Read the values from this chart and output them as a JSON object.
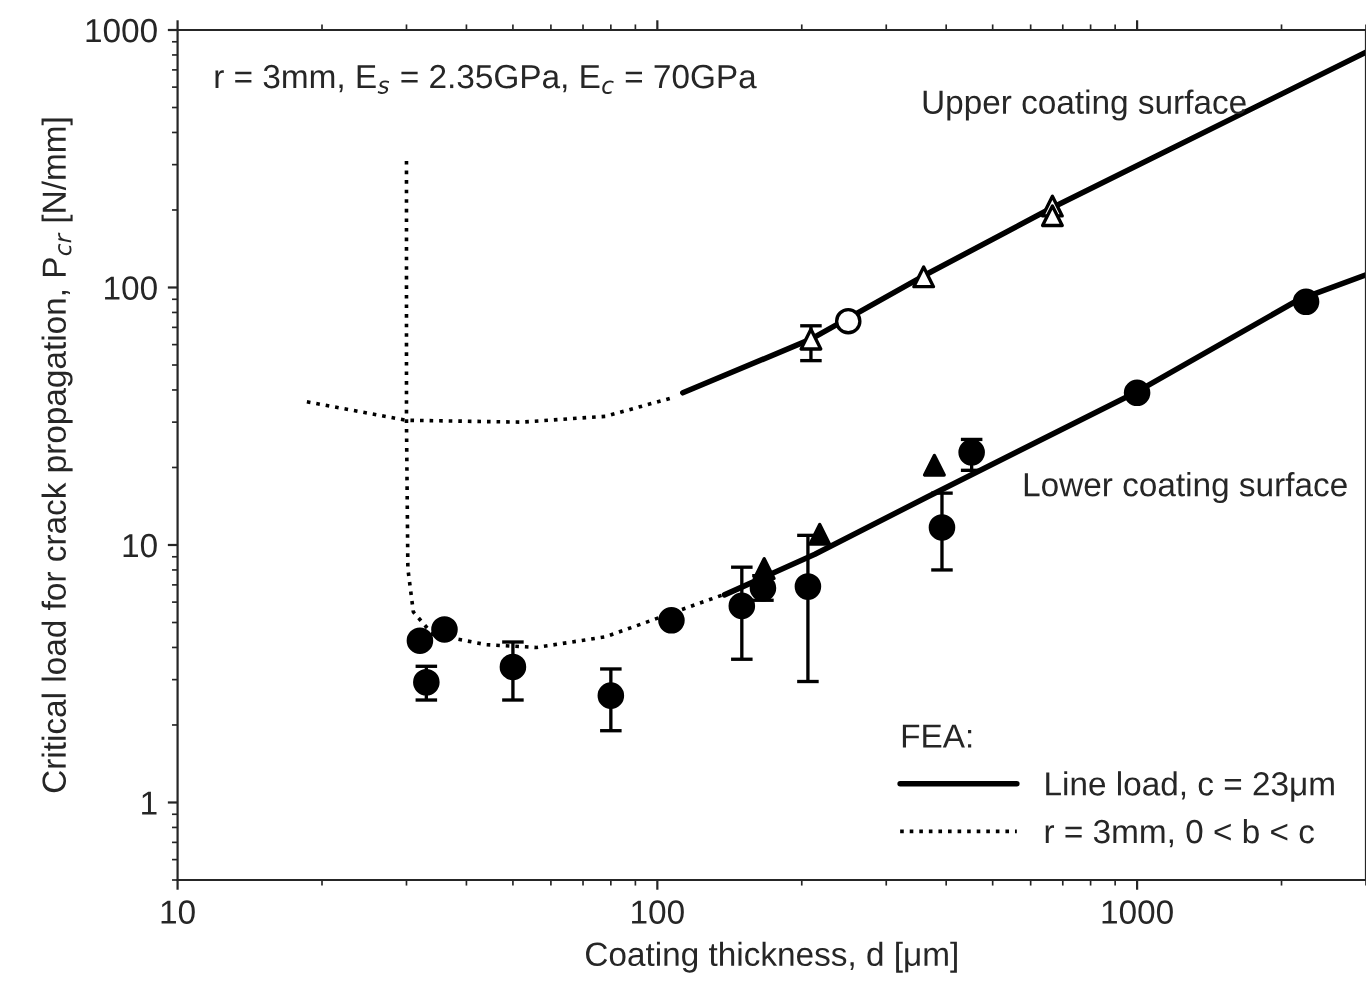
{
  "chart_data": {
    "type": "scatter",
    "log": "xy",
    "xlabel": "Coating thickness, d [μm]",
    "ylabel": "Critical load for crack propagation, P$_{cr}$ [N/mm]",
    "xlim": [
      10,
      3000
    ],
    "ylim": [
      0.5,
      1000
    ],
    "xticks": [
      10,
      100,
      1000
    ],
    "yticks": [
      1,
      10,
      100,
      1000
    ],
    "grid": false,
    "legend": "bottom right",
    "legend_title": "FEA:",
    "annotations": [
      "r = 3mm, E$_{s}$ = 2.35GPa, E$_{c}$ = 70GPa",
      "Upper coating surface",
      "Lower coating surface"
    ],
    "series": [
      {
        "marker": "circle",
        "color": "#000000",
        "x": [
          32,
          33,
          36,
          50,
          80,
          107,
          150,
          166,
          206,
          392,
          452,
          1000,
          2250
        ],
        "values": [
          4.25,
          2.93,
          4.7,
          3.36,
          2.6,
          5.1,
          5.8,
          6.8,
          6.9,
          11.7,
          22.9,
          39,
          88
        ],
        "errors": [
          null,
          [
            2.5,
            3.38
          ],
          null,
          [
            2.5,
            4.2
          ],
          [
            1.9,
            3.3
          ],
          null,
          [
            3.6,
            8.2
          ],
          [
            6.1,
            7.6
          ],
          [
            2.95,
            10.9
          ],
          [
            8,
            15.9
          ],
          [
            19.5,
            25.7
          ],
          null,
          null
        ]
      },
      {
        "marker": "triangle",
        "color": "#000000",
        "x": [
          167,
          218,
          378
        ],
        "values": [
          8.1,
          11,
          20.4
        ]
      },
      {
        "marker": "triangle",
        "color": "#ffffff",
        "x": [
          209,
          359,
          666,
          666
        ],
        "values": [
          63,
          110,
          207,
          190
        ],
        "errors": [
          [
            52,
            71
          ],
          null,
          null,
          null
        ]
      },
      {
        "marker": "circle",
        "color": "#ffffff",
        "x": [
          250
        ],
        "values": [
          74
        ]
      },
      {
        "type": "line",
        "line_style": "solid",
        "color": "#000000",
        "name": "Line load, c = 23μm",
        "x": [
          113,
          209,
          359,
          668,
          3000
        ],
        "values": [
          39,
          63,
          111,
          205,
          820
        ]
      },
      {
        "type": "line",
        "line_style": "solid",
        "color": "#000000",
        "x": [
          138,
          213,
          366,
          1000,
          2180,
          3000
        ],
        "values": [
          6.4,
          9.2,
          15.4,
          39.4,
          90,
          112
        ]
      },
      {
        "type": "line",
        "line_style": "dotted",
        "color": "#000000",
        "name": "r = 3mm, 0 < b < c",
        "x": [
          30,
          30,
          30.2,
          31,
          34,
          44,
          56,
          78,
          109,
          150
        ],
        "values": [
          310,
          30,
          8.1,
          5.5,
          4.5,
          4.1,
          4.0,
          4.4,
          5.5,
          6.8
        ]
      },
      {
        "type": "line",
        "line_style": "dotted",
        "color": "#000000",
        "x": [
          18.6,
          30,
          52,
          78,
          109
        ],
        "values": [
          36,
          30.5,
          30,
          31.6,
          37.6
        ]
      }
    ]
  }
}
